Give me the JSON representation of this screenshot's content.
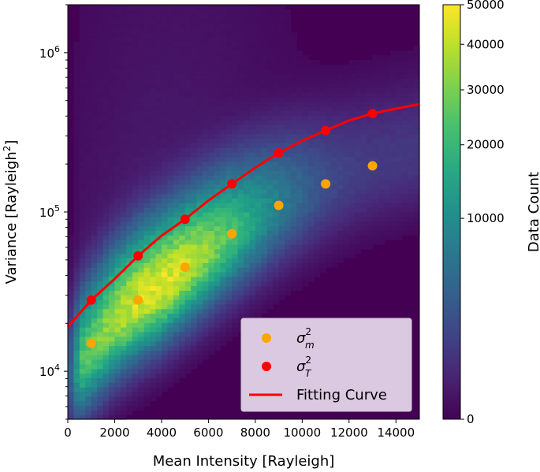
{
  "chart_data": {
    "type": "heatmap",
    "xlabel": "Mean Intensity [Rayleigh]",
    "ylabel_text": "Variance [Rayleigh",
    "ylabel_sup": "2",
    "ylabel_close": "]",
    "xlim": [
      0,
      15000
    ],
    "ylim": [
      5000,
      2000000
    ],
    "yscale": "log",
    "x_ticks": [
      0,
      2000,
      4000,
      6000,
      8000,
      10000,
      12000,
      14000
    ],
    "x_tick_labels": [
      "0",
      "2000",
      "4000",
      "6000",
      "8000",
      "10000",
      "12000",
      "14000"
    ],
    "y_ticks": [
      10000,
      100000,
      1000000
    ],
    "y_tick_labels": [
      {
        "base": "10",
        "exp": "4"
      },
      {
        "base": "10",
        "exp": "5"
      },
      {
        "base": "10",
        "exp": "6"
      }
    ],
    "colorbar": {
      "label": "Data Count",
      "colormap": "viridis",
      "scale": "power",
      "range": [
        0,
        50000
      ],
      "ticks": [
        0,
        10000,
        20000,
        30000,
        40000,
        50000
      ],
      "tick_labels": [
        "0",
        "10000",
        "20000",
        "30000",
        "40000",
        "50000"
      ]
    },
    "legend": {
      "placement": "lower-right",
      "entries": [
        {
          "kind": "marker",
          "base": "σ",
          "sup": "2",
          "sub": "m",
          "color": "#ffa500"
        },
        {
          "kind": "marker",
          "base": "σ",
          "sup": "2",
          "sub": "T",
          "color": "#ff0000"
        },
        {
          "kind": "line",
          "label": "Fitting Curve",
          "color": "#ff0000"
        }
      ]
    },
    "series": [
      {
        "type": "scatter",
        "color": "#ffa500",
        "x": [
          1000,
          3000,
          5000,
          7000,
          9000,
          11000,
          13000
        ],
        "y": [
          15000,
          28000,
          45000,
          73000,
          110000,
          150000,
          195000
        ]
      },
      {
        "type": "scatter",
        "color": "#ff0000",
        "x": [
          1000,
          3000,
          5000,
          7000,
          9000,
          11000,
          13000
        ],
        "y": [
          28000,
          53000,
          90000,
          150000,
          235000,
          325000,
          415000
        ]
      },
      {
        "type": "line",
        "color": "#ff0000",
        "x": [
          0,
          1000,
          2000,
          3000,
          4000,
          5000,
          6000,
          7000,
          8000,
          9000,
          10000,
          11000,
          12000,
          13000,
          14000,
          15000
        ],
        "y": [
          19000,
          28000,
          38000,
          53000,
          71000,
          90000,
          118000,
          150000,
          190000,
          235000,
          280000,
          325000,
          375000,
          415000,
          445000,
          475000
        ]
      }
    ],
    "density": {
      "x_bin_width": 250,
      "ridge_x": [
        0,
        1000,
        2000,
        3000,
        4000,
        5000,
        6000,
        7000,
        8000,
        9000,
        10000,
        11000,
        12000,
        13000,
        14000,
        15000
      ],
      "ridge_y": [
        9000,
        14000,
        21000,
        28000,
        35000,
        45000,
        58000,
        73000,
        90000,
        110000,
        130000,
        150000,
        172000,
        195000,
        215000,
        235000
      ],
      "peak_x": 3800,
      "peak_count": 45000
    }
  }
}
